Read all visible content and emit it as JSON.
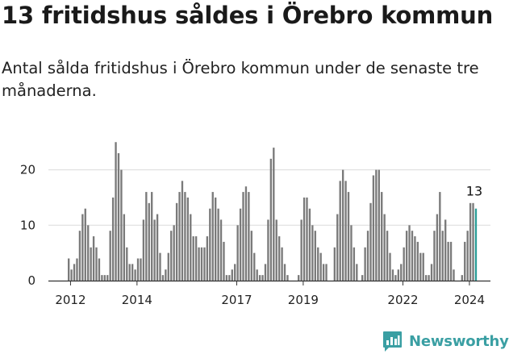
{
  "header": {
    "title": "13 fritidshus såldes i Örebro kommun",
    "subtitle": "Antal sålda fritidshus i Örebro kommun under de senaste tre månaderna."
  },
  "brand": {
    "name": "Newsworthy",
    "color": "#3a9fa3",
    "icon": "newsworthy-logo-icon"
  },
  "colors": {
    "bar": "#7a7a7a",
    "highlight": "#2a9d97",
    "grid": "#dcdcdc",
    "axis": "#333333"
  },
  "chart_data": {
    "type": "bar",
    "x_start": "2011-12",
    "frequency": "monthly",
    "xticks": [
      "2012",
      "2014",
      "2017",
      "2019",
      "2022",
      "2024"
    ],
    "yticks": [
      0,
      10,
      20
    ],
    "ylim": [
      0,
      25
    ],
    "grid": true,
    "annotation": {
      "label": "13",
      "value": 13,
      "month": "2024-06"
    },
    "values": [
      4,
      2,
      3,
      4,
      9,
      12,
      13,
      10,
      6,
      8,
      6,
      4,
      1,
      1,
      1,
      9,
      15,
      25,
      23,
      20,
      12,
      6,
      3,
      3,
      2,
      4,
      4,
      11,
      16,
      14,
      16,
      11,
      12,
      5,
      1,
      2,
      5,
      9,
      10,
      14,
      16,
      18,
      16,
      15,
      12,
      8,
      8,
      6,
      6,
      6,
      8,
      13,
      16,
      15,
      13,
      11,
      7,
      1,
      1,
      2,
      3,
      10,
      13,
      16,
      17,
      16,
      9,
      5,
      2,
      1,
      1,
      3,
      11,
      22,
      24,
      11,
      8,
      6,
      3,
      1,
      0,
      0,
      0,
      1,
      11,
      15,
      15,
      13,
      10,
      9,
      6,
      5,
      3,
      3,
      0,
      0,
      6,
      12,
      18,
      20,
      18,
      16,
      10,
      6,
      3,
      0,
      1,
      6,
      9,
      14,
      19,
      20,
      20,
      16,
      12,
      9,
      5,
      2,
      1,
      2,
      3,
      6,
      9,
      10,
      9,
      8,
      7,
      5,
      5,
      1,
      1,
      3,
      9,
      12,
      16,
      9,
      11,
      7,
      7,
      2,
      0,
      0,
      1,
      7,
      9,
      14,
      14,
      13
    ]
  }
}
